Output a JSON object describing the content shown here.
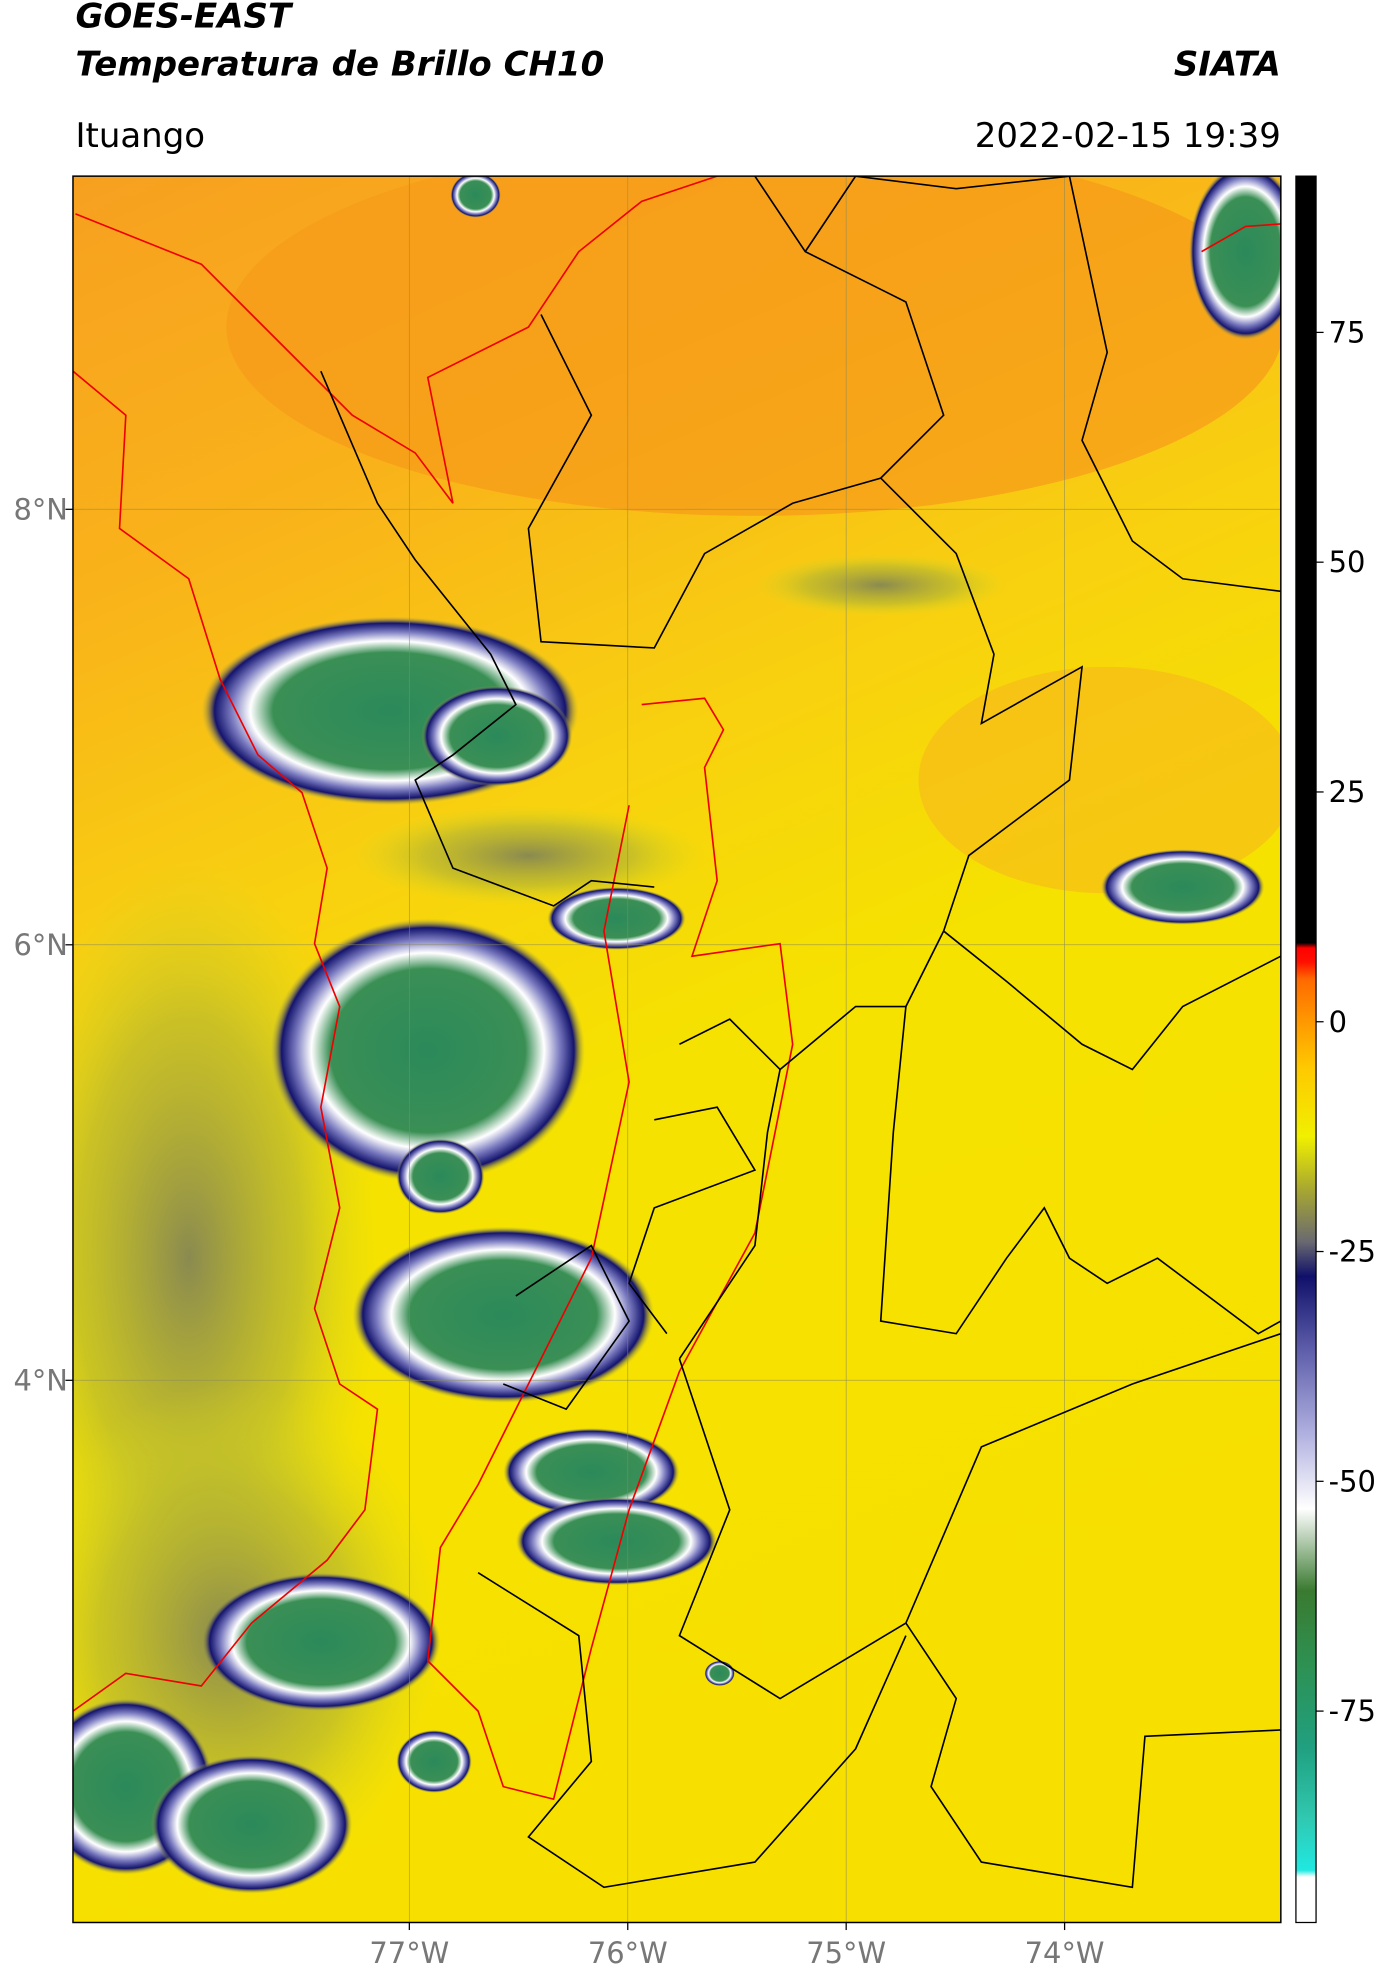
{
  "header": {
    "title": "GOES-EAST",
    "subtitle": "Temperatura de Brillo CH10",
    "brand": "SIATA",
    "location": "Ituango",
    "datetime": "2022-02-15 19:39"
  },
  "map": {
    "lat_range": [
      1.51,
      9.53
    ],
    "lon_range": [
      -78.54,
      -73.01
    ],
    "lat_ticks": [
      {
        "value": 8,
        "label": "8°N"
      },
      {
        "value": 6,
        "label": "6°N"
      },
      {
        "value": 4,
        "label": "4°N"
      }
    ],
    "lon_ticks": [
      {
        "value": -77,
        "label": "77°W"
      },
      {
        "value": -76,
        "label": "76°W"
      },
      {
        "value": -75,
        "label": "75°W"
      },
      {
        "value": -74,
        "label": "74°W"
      }
    ]
  },
  "colorbar": {
    "range": [
      -98,
      92
    ],
    "ticks": [
      75,
      50,
      25,
      0,
      -25,
      -50,
      -75
    ]
  }
}
